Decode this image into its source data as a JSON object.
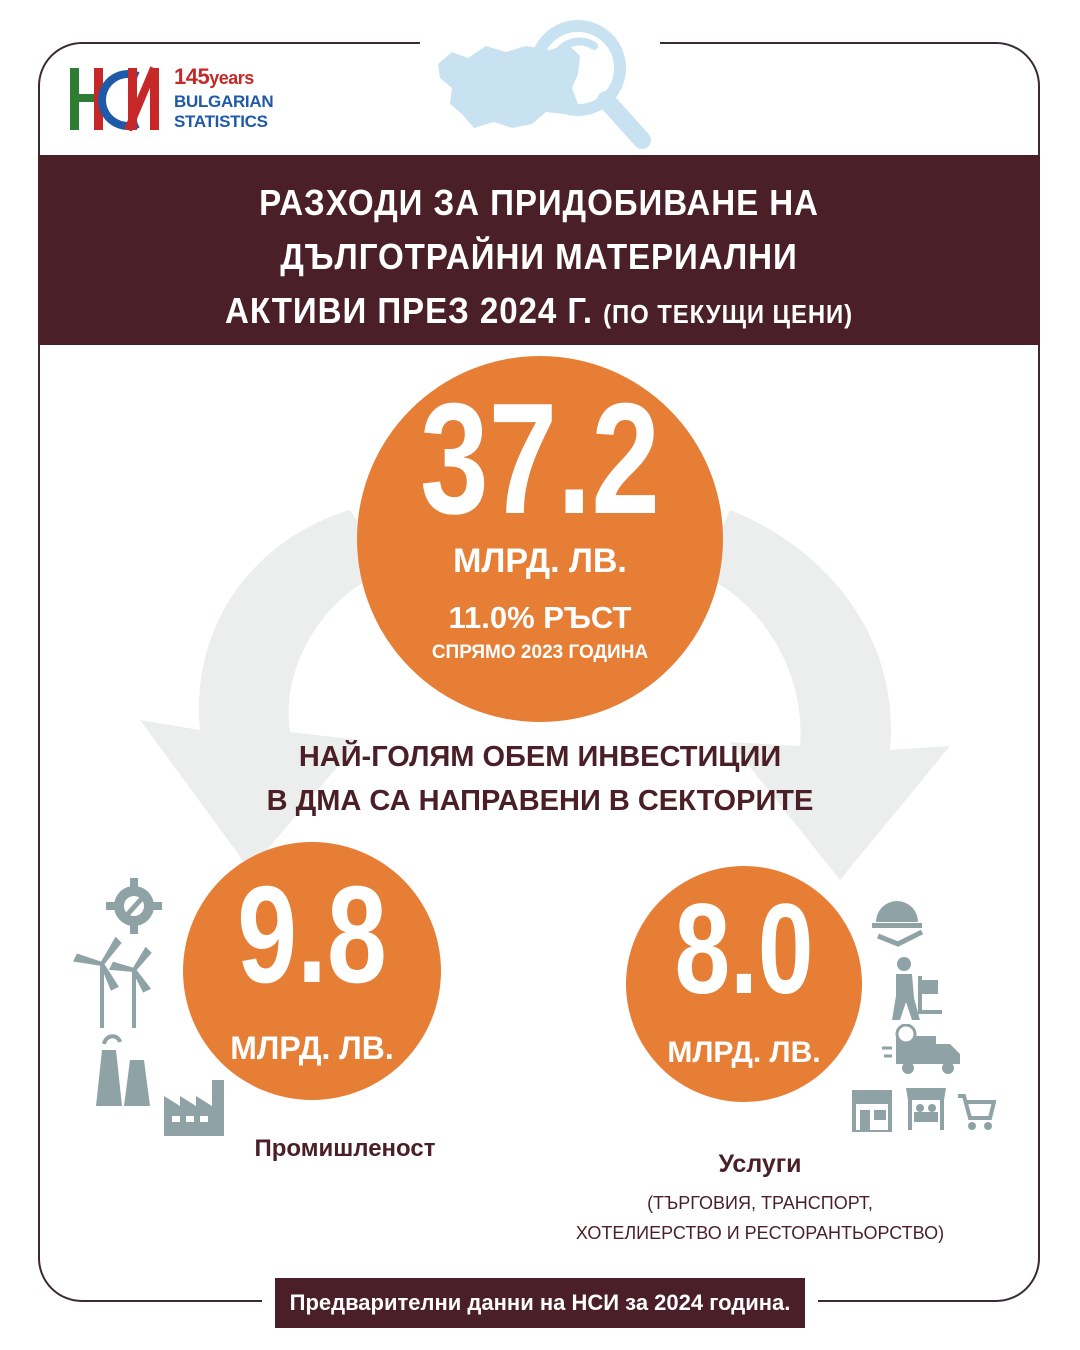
{
  "logo": {
    "years_number": "145",
    "years_word": "years",
    "line1": "BULGARIAN",
    "line2": "STATISTICS",
    "colors": {
      "red": "#c62828",
      "green": "#2e7d32",
      "blue": "#1e5aa8"
    }
  },
  "title": {
    "line1": "РАЗХОДИ ЗА ПРИДОБИВАНЕ НА",
    "line2": "ДЪЛГОТРАЙНИ МАТЕРИАЛНИ",
    "line3": "АКТИВИ ПРЕЗ 2024 Г.",
    "line3_sub": "(ПО ТЕКУЩИ ЦЕНИ)"
  },
  "main_stat": {
    "value": "37.2",
    "unit": "МЛРД. ЛВ.",
    "growth": "11.0% РЪСТ",
    "comparison": "СПРЯМО 2023 ГОДИНА"
  },
  "middle_text": {
    "line1": "НАЙ-ГОЛЯМ ОБЕМ ИНВЕСТИЦИИ",
    "line2": "В ДМА СА НАПРАВЕНИ В СЕКТОРИТЕ"
  },
  "sectors": {
    "industry": {
      "value": "9.8",
      "unit": "МЛРД. ЛВ.",
      "label": "Промишленост"
    },
    "services": {
      "value": "8.0",
      "unit": "МЛРД. ЛВ.",
      "label": "Услуги",
      "sublabel_line1": "(ТЪРГОВИЯ, ТРАНСПОРТ,",
      "sublabel_line2": "ХОТЕЛИЕРСТВО И РЕСТОРАНТЬОРСТВО)"
    }
  },
  "footer": "Предварителни данни на НСИ за 2024 година.",
  "colors": {
    "maroon": "#4a1f28",
    "orange": "#e67e35",
    "icon_gray": "#8fa3a6",
    "arrow_gray": "#eceeee",
    "map_blue": "#c9e2f2"
  },
  "icons": [
    "gear-wrench-icon",
    "wind-turbine-icon",
    "factory-icon",
    "cloche-icon",
    "delivery-worker-icon",
    "delivery-truck-icon",
    "shop-icon",
    "market-stall-icon",
    "shopping-cart-icon"
  ]
}
